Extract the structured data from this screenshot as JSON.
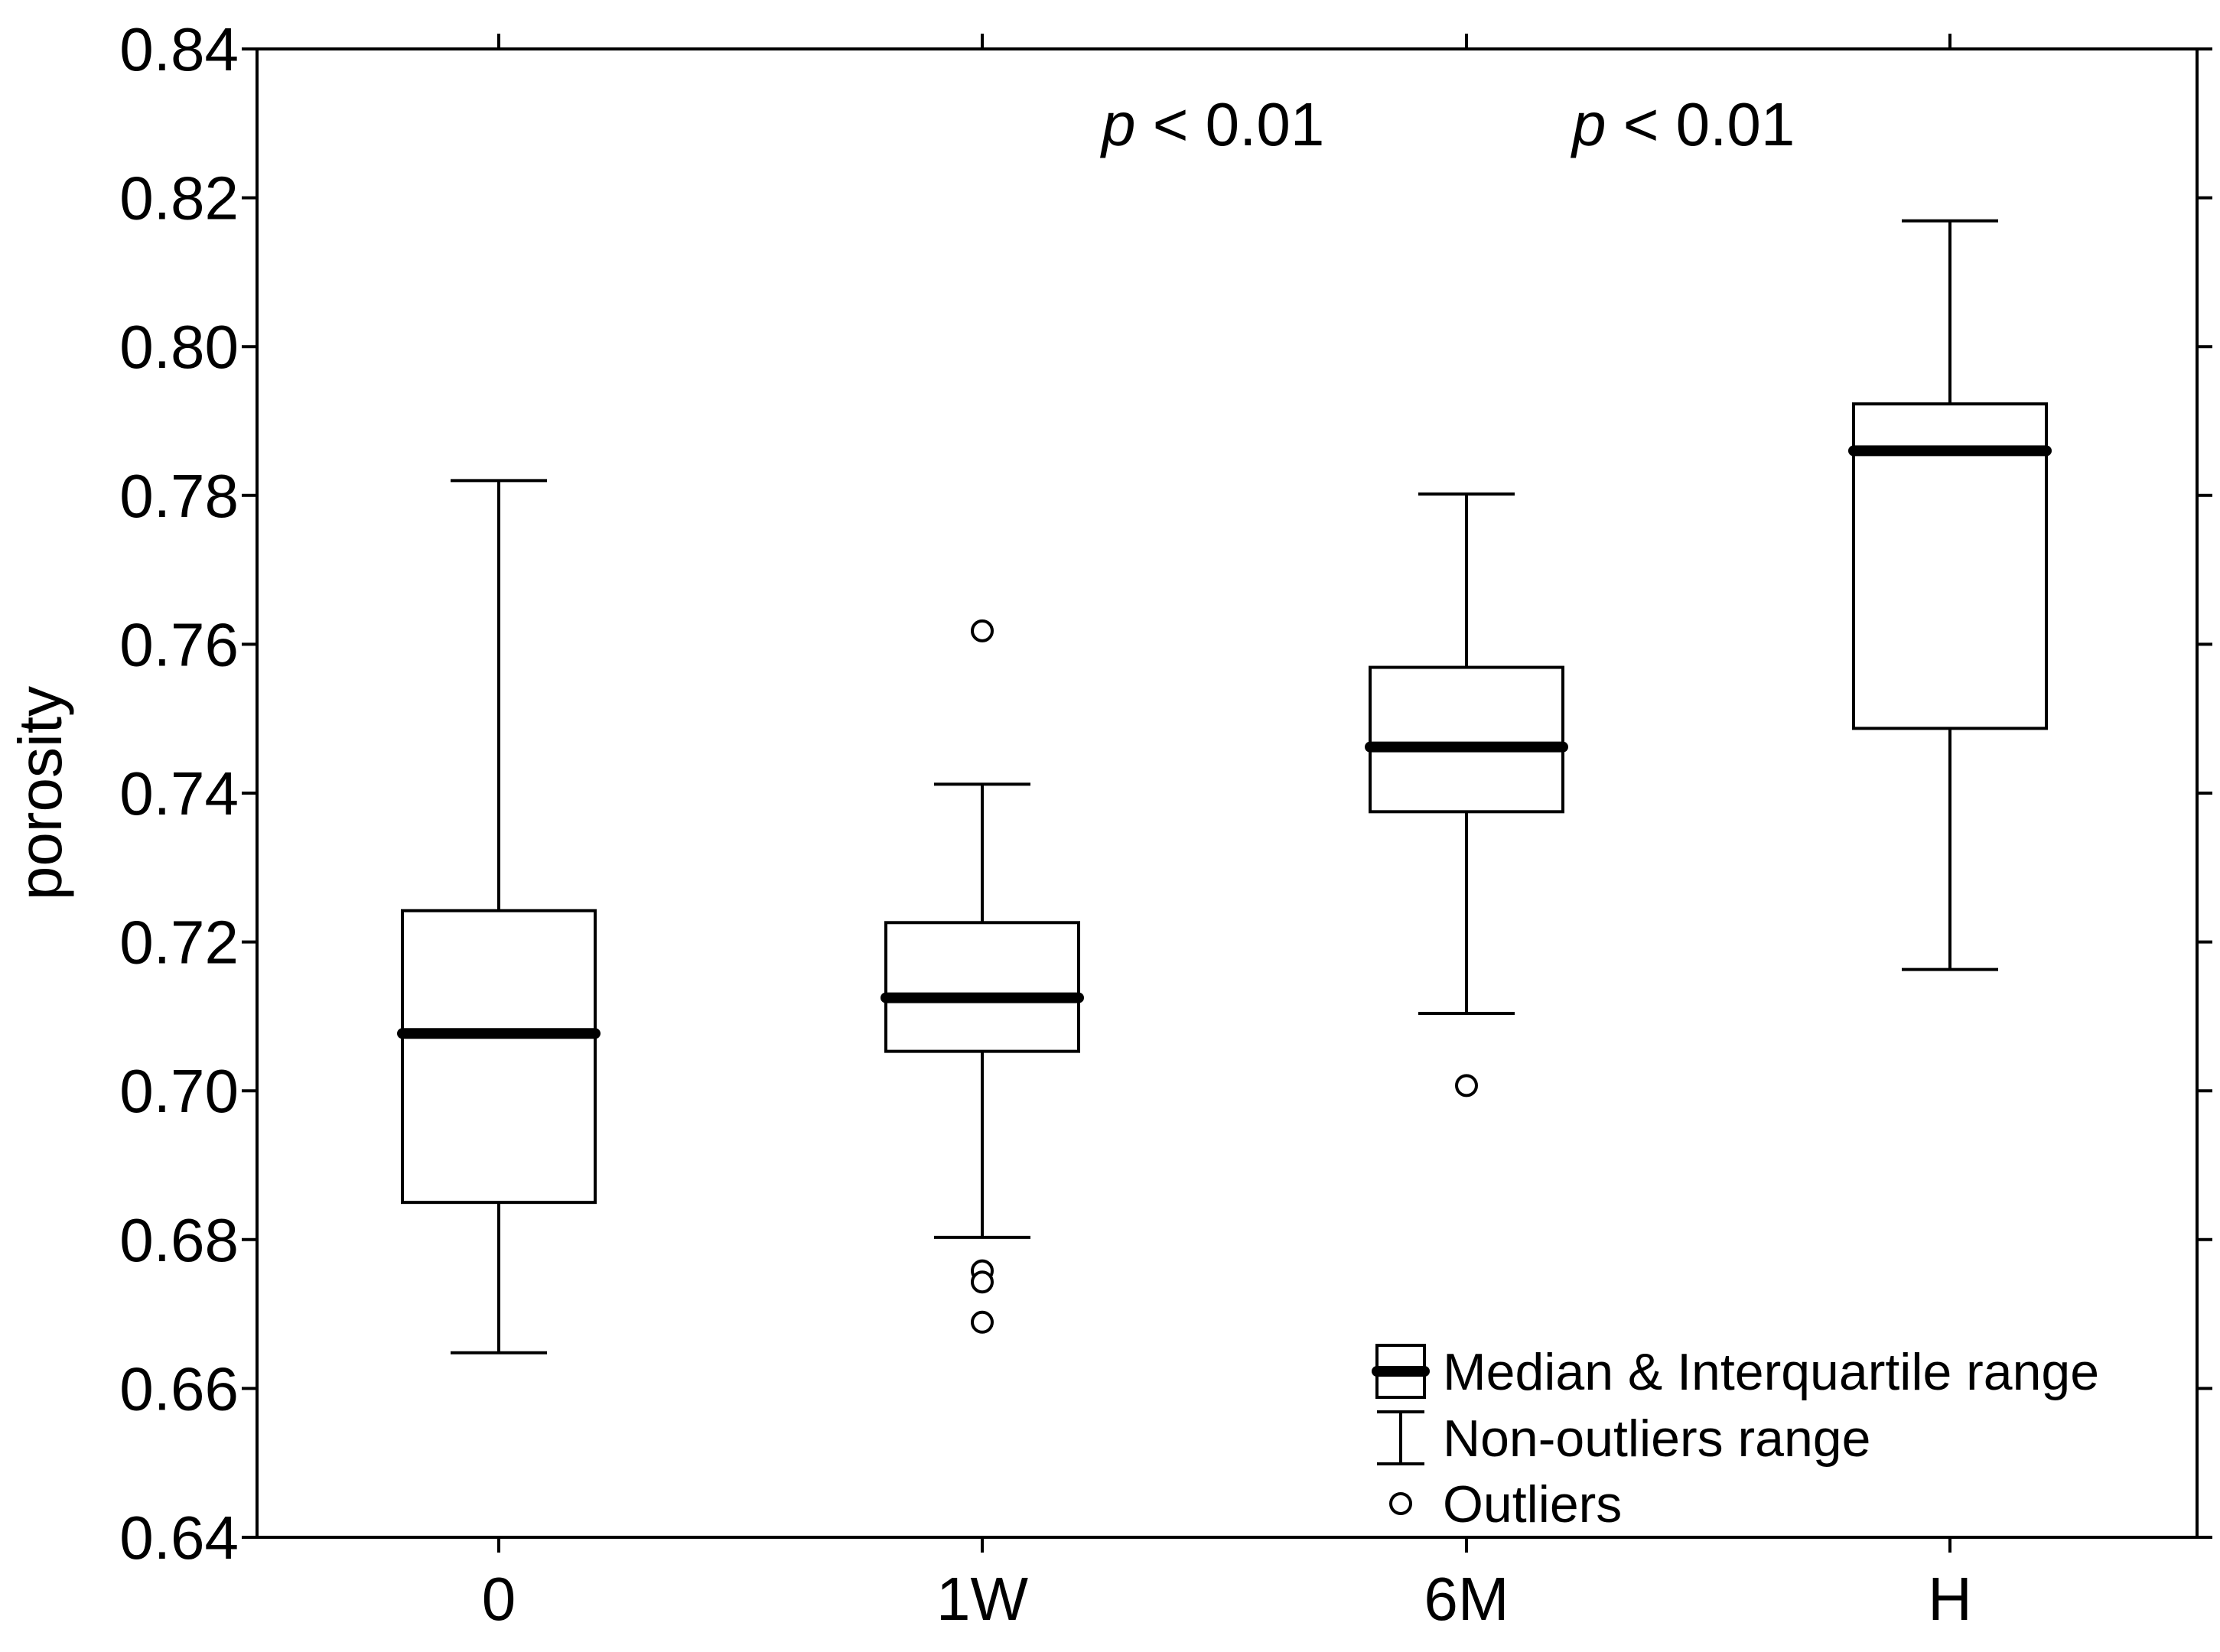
{
  "chart_data": {
    "type": "boxplot",
    "title": "",
    "xlabel": "",
    "ylabel": "porosity",
    "ylim": [
      0.64,
      0.84
    ],
    "yticks": [
      "0.64",
      "0.66",
      "0.68",
      "0.70",
      "0.72",
      "0.74",
      "0.76",
      "0.78",
      "0.80",
      "0.82",
      "0.84"
    ],
    "ytick_values": [
      0.64,
      0.66,
      0.68,
      0.7,
      0.72,
      0.74,
      0.76,
      0.78,
      0.8,
      0.82,
      0.84
    ],
    "categories": [
      "0",
      "1W",
      "6M",
      "H"
    ],
    "boxes": [
      {
        "category": "0",
        "whisker_low": 0.6648,
        "q1": 0.685,
        "median": 0.7077,
        "q3": 0.7242,
        "whisker_high": 0.782,
        "outliers": []
      },
      {
        "category": "1W",
        "whisker_low": 0.6803,
        "q1": 0.7053,
        "median": 0.7125,
        "q3": 0.7226,
        "whisker_high": 0.7412,
        "outliers": [
          0.7618,
          0.6758,
          0.6743,
          0.6689
        ]
      },
      {
        "category": "6M",
        "whisker_low": 0.7104,
        "q1": 0.7375,
        "median": 0.7462,
        "q3": 0.7569,
        "whisker_high": 0.7802,
        "outliers": [
          0.7007
        ]
      },
      {
        "category": "H",
        "whisker_low": 0.7163,
        "q1": 0.7487,
        "median": 0.786,
        "q3": 0.7923,
        "whisker_high": 0.8169,
        "outliers": []
      }
    ],
    "annotations": [
      {
        "italic": "p",
        "text": " < 0.01",
        "x_between": [
          "1W",
          "6M"
        ]
      },
      {
        "italic": "p",
        "text": " < 0.01",
        "x_between": [
          "6M",
          "H"
        ]
      }
    ],
    "legend": {
      "placement": "bottom-right",
      "items": [
        {
          "symbol": "box-median",
          "label": "Median & Interquartile range"
        },
        {
          "symbol": "whisker",
          "label": "Non-outliers range"
        },
        {
          "symbol": "circle",
          "label": "Outliers"
        }
      ]
    }
  }
}
